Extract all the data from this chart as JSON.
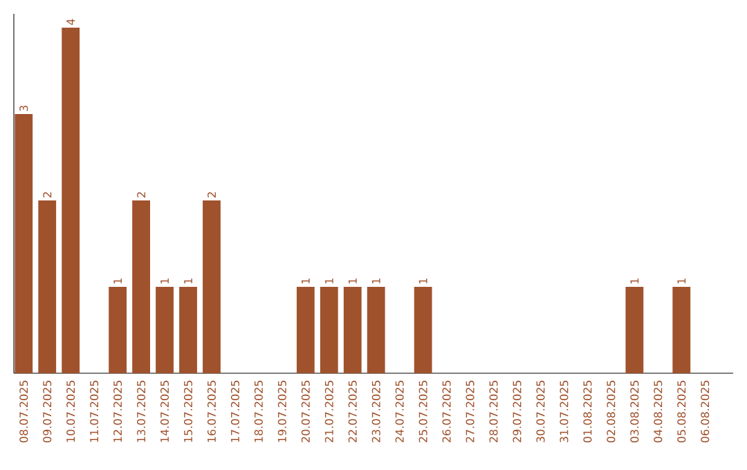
{
  "chart_data": {
    "type": "bar",
    "color": "#a0522d",
    "categories": [
      "08.07.2025",
      "09.07.2025",
      "10.07.2025",
      "11.07.2025",
      "12.07.2025",
      "13.07.2025",
      "14.07.2025",
      "15.07.2025",
      "16.07.2025",
      "17.07.2025",
      "18.07.2025",
      "19.07.2025",
      "20.07.2025",
      "21.07.2025",
      "22.07.2025",
      "23.07.2025",
      "24.07.2025",
      "25.07.2025",
      "26.07.2025",
      "27.07.2025",
      "28.07.2025",
      "29.07.2025",
      "30.07.2025",
      "31.07.2025",
      "01.08.2025",
      "02.08.2025",
      "03.08.2025",
      "04.08.2025",
      "05.08.2025",
      "06.08.2025"
    ],
    "values": [
      3,
      2,
      4,
      0,
      1,
      2,
      1,
      1,
      2,
      0,
      0,
      0,
      1,
      1,
      1,
      1,
      0,
      1,
      0,
      0,
      0,
      0,
      0,
      0,
      0,
      0,
      1,
      0,
      1,
      0
    ],
    "value_labels": [
      "3",
      "2",
      "4",
      null,
      "1",
      "2",
      "1",
      "1",
      "2",
      null,
      null,
      null,
      "1",
      "1",
      "1",
      "1",
      null,
      "1",
      null,
      null,
      null,
      null,
      null,
      null,
      null,
      null,
      "1",
      null,
      "1",
      null
    ]
  }
}
